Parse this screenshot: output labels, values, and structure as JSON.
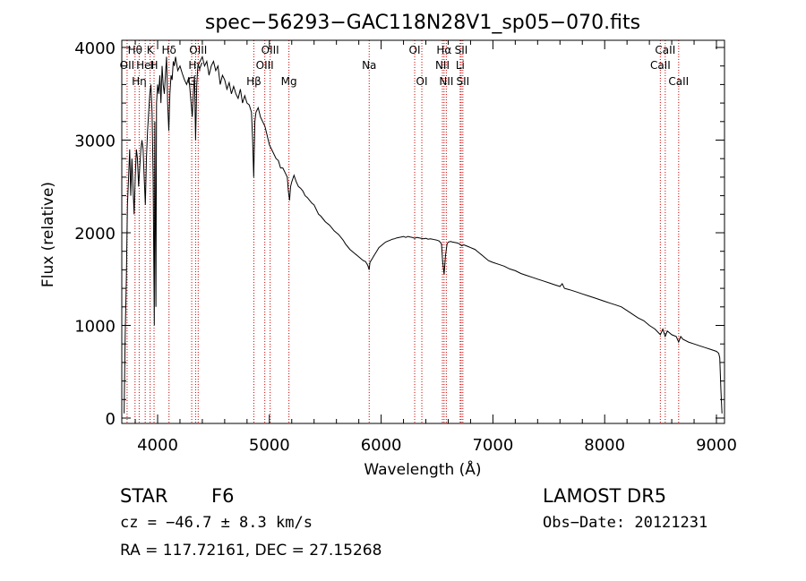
{
  "chart_data": {
    "type": "line",
    "title": "spec−56293−GAC118N28V1_sp05−070.fits",
    "xlabel": "Wavelength (Å)",
    "ylabel": "Flux (relative)",
    "xlim": [
      3700,
      9100
    ],
    "ylim": [
      0,
      4100
    ],
    "xticks": [
      4000,
      5000,
      6000,
      7000,
      8000,
      9000
    ],
    "yticks": [
      0,
      1000,
      2000,
      3000,
      4000
    ],
    "grid": false,
    "series": [
      {
        "points": [
          [
            3700,
            50
          ],
          [
            3710,
            900
          ],
          [
            3720,
            1500
          ],
          [
            3730,
            2300
          ],
          [
            3740,
            2600
          ],
          [
            3750,
            2900
          ],
          [
            3760,
            2400
          ],
          [
            3770,
            2800
          ],
          [
            3780,
            2500
          ],
          [
            3790,
            2200
          ],
          [
            3800,
            2600
          ],
          [
            3810,
            2900
          ],
          [
            3820,
            2800
          ],
          [
            3830,
            2500
          ],
          [
            3840,
            2700
          ],
          [
            3850,
            2900
          ],
          [
            3860,
            3000
          ],
          [
            3870,
            2900
          ],
          [
            3880,
            2600
          ],
          [
            3890,
            2300
          ],
          [
            3900,
            2800
          ],
          [
            3910,
            3100
          ],
          [
            3920,
            3300
          ],
          [
            3930,
            3500
          ],
          [
            3940,
            3600
          ],
          [
            3950,
            3300
          ],
          [
            3960,
            2600
          ],
          [
            3970,
            1000
          ],
          [
            3975,
            3200
          ],
          [
            3985,
            1200
          ],
          [
            3990,
            3400
          ],
          [
            4000,
            3600
          ],
          [
            4010,
            3500
          ],
          [
            4020,
            3700
          ],
          [
            4030,
            3400
          ],
          [
            4040,
            3800
          ],
          [
            4050,
            3600
          ],
          [
            4060,
            3500
          ],
          [
            4070,
            3700
          ],
          [
            4080,
            3900
          ],
          [
            4090,
            3400
          ],
          [
            4100,
            3100
          ],
          [
            4110,
            3500
          ],
          [
            4120,
            3700
          ],
          [
            4130,
            3650
          ],
          [
            4140,
            3850
          ],
          [
            4150,
            3800
          ],
          [
            4160,
            3900
          ],
          [
            4180,
            3750
          ],
          [
            4200,
            3800
          ],
          [
            4220,
            3720
          ],
          [
            4240,
            3650
          ],
          [
            4260,
            3600
          ],
          [
            4280,
            3680
          ],
          [
            4300,
            3400
          ],
          [
            4310,
            3250
          ],
          [
            4320,
            3500
          ],
          [
            4330,
            3700
          ],
          [
            4340,
            3000
          ],
          [
            4350,
            3600
          ],
          [
            4360,
            3800
          ],
          [
            4380,
            3850
          ],
          [
            4400,
            3900
          ],
          [
            4420,
            3800
          ],
          [
            4440,
            3850
          ],
          [
            4460,
            3700
          ],
          [
            4480,
            3800
          ],
          [
            4500,
            3850
          ],
          [
            4520,
            3750
          ],
          [
            4540,
            3800
          ],
          [
            4560,
            3600
          ],
          [
            4580,
            3700
          ],
          [
            4600,
            3650
          ],
          [
            4620,
            3550
          ],
          [
            4640,
            3620
          ],
          [
            4660,
            3500
          ],
          [
            4680,
            3580
          ],
          [
            4700,
            3500
          ],
          [
            4720,
            3450
          ],
          [
            4740,
            3550
          ],
          [
            4760,
            3400
          ],
          [
            4780,
            3480
          ],
          [
            4800,
            3400
          ],
          [
            4820,
            3380
          ],
          [
            4840,
            3300
          ],
          [
            4850,
            3000
          ],
          [
            4860,
            2600
          ],
          [
            4870,
            3200
          ],
          [
            4880,
            3300
          ],
          [
            4900,
            3350
          ],
          [
            4920,
            3250
          ],
          [
            4940,
            3200
          ],
          [
            4960,
            3150
          ],
          [
            4980,
            3050
          ],
          [
            5000,
            2950
          ],
          [
            5020,
            2900
          ],
          [
            5040,
            2850
          ],
          [
            5060,
            2800
          ],
          [
            5080,
            2780
          ],
          [
            5100,
            2700
          ],
          [
            5120,
            2700
          ],
          [
            5140,
            2650
          ],
          [
            5160,
            2600
          ],
          [
            5170,
            2450
          ],
          [
            5180,
            2350
          ],
          [
            5190,
            2500
          ],
          [
            5200,
            2550
          ],
          [
            5220,
            2620
          ],
          [
            5240,
            2550
          ],
          [
            5260,
            2500
          ],
          [
            5280,
            2480
          ],
          [
            5300,
            2450
          ],
          [
            5320,
            2400
          ],
          [
            5340,
            2380
          ],
          [
            5360,
            2350
          ],
          [
            5380,
            2320
          ],
          [
            5400,
            2300
          ],
          [
            5420,
            2250
          ],
          [
            5440,
            2200
          ],
          [
            5460,
            2180
          ],
          [
            5480,
            2150
          ],
          [
            5500,
            2120
          ],
          [
            5520,
            2100
          ],
          [
            5540,
            2080
          ],
          [
            5560,
            2050
          ],
          [
            5580,
            2020
          ],
          [
            5600,
            2000
          ],
          [
            5620,
            1980
          ],
          [
            5640,
            1950
          ],
          [
            5660,
            1920
          ],
          [
            5680,
            1880
          ],
          [
            5700,
            1850
          ],
          [
            5720,
            1820
          ],
          [
            5740,
            1800
          ],
          [
            5760,
            1780
          ],
          [
            5780,
            1760
          ],
          [
            5800,
            1740
          ],
          [
            5820,
            1720
          ],
          [
            5840,
            1700
          ],
          [
            5860,
            1690
          ],
          [
            5880,
            1650
          ],
          [
            5893,
            1600
          ],
          [
            5900,
            1680
          ],
          [
            5920,
            1720
          ],
          [
            5940,
            1760
          ],
          [
            5960,
            1800
          ],
          [
            5980,
            1840
          ],
          [
            6000,
            1860
          ],
          [
            6020,
            1880
          ],
          [
            6040,
            1900
          ],
          [
            6060,
            1910
          ],
          [
            6080,
            1920
          ],
          [
            6100,
            1930
          ],
          [
            6120,
            1935
          ],
          [
            6140,
            1945
          ],
          [
            6160,
            1950
          ],
          [
            6180,
            1955
          ],
          [
            6200,
            1960
          ],
          [
            6220,
            1950
          ],
          [
            6240,
            1960
          ],
          [
            6260,
            1955
          ],
          [
            6280,
            1950
          ],
          [
            6300,
            1940
          ],
          [
            6320,
            1950
          ],
          [
            6340,
            1945
          ],
          [
            6360,
            1940
          ],
          [
            6380,
            1935
          ],
          [
            6400,
            1940
          ],
          [
            6420,
            1930
          ],
          [
            6440,
            1935
          ],
          [
            6460,
            1930
          ],
          [
            6480,
            1925
          ],
          [
            6500,
            1920
          ],
          [
            6520,
            1910
          ],
          [
            6540,
            1880
          ],
          [
            6550,
            1700
          ],
          [
            6563,
            1550
          ],
          [
            6575,
            1750
          ],
          [
            6590,
            1880
          ],
          [
            6600,
            1900
          ],
          [
            6620,
            1905
          ],
          [
            6640,
            1900
          ],
          [
            6660,
            1895
          ],
          [
            6680,
            1890
          ],
          [
            6700,
            1880
          ],
          [
            6720,
            1860
          ],
          [
            6740,
            1870
          ],
          [
            6760,
            1860
          ],
          [
            6780,
            1850
          ],
          [
            6800,
            1840
          ],
          [
            6820,
            1830
          ],
          [
            6840,
            1820
          ],
          [
            6860,
            1800
          ],
          [
            6880,
            1780
          ],
          [
            6900,
            1760
          ],
          [
            6920,
            1740
          ],
          [
            6940,
            1720
          ],
          [
            6960,
            1700
          ],
          [
            6980,
            1690
          ],
          [
            7000,
            1680
          ],
          [
            7050,
            1660
          ],
          [
            7100,
            1640
          ],
          [
            7150,
            1610
          ],
          [
            7200,
            1590
          ],
          [
            7250,
            1560
          ],
          [
            7300,
            1540
          ],
          [
            7350,
            1520
          ],
          [
            7400,
            1500
          ],
          [
            7450,
            1480
          ],
          [
            7500,
            1460
          ],
          [
            7550,
            1440
          ],
          [
            7600,
            1420
          ],
          [
            7620,
            1450
          ],
          [
            7640,
            1400
          ],
          [
            7700,
            1380
          ],
          [
            7750,
            1360
          ],
          [
            7800,
            1340
          ],
          [
            7850,
            1320
          ],
          [
            7900,
            1300
          ],
          [
            7950,
            1280
          ],
          [
            8000,
            1260
          ],
          [
            8050,
            1240
          ],
          [
            8100,
            1220
          ],
          [
            8150,
            1200
          ],
          [
            8200,
            1160
          ],
          [
            8250,
            1120
          ],
          [
            8300,
            1080
          ],
          [
            8350,
            1050
          ],
          [
            8400,
            1000
          ],
          [
            8450,
            960
          ],
          [
            8498,
            900
          ],
          [
            8520,
            960
          ],
          [
            8542,
            880
          ],
          [
            8560,
            940
          ],
          [
            8600,
            900
          ],
          [
            8640,
            880
          ],
          [
            8662,
            820
          ],
          [
            8680,
            880
          ],
          [
            8700,
            850
          ],
          [
            8750,
            820
          ],
          [
            8800,
            800
          ],
          [
            8850,
            780
          ],
          [
            8900,
            760
          ],
          [
            8950,
            740
          ],
          [
            9000,
            720
          ],
          [
            9020,
            700
          ],
          [
            9030,
            650
          ],
          [
            9040,
            300
          ],
          [
            9050,
            50
          ]
        ]
      }
    ],
    "lines": [
      {
        "x": 3727,
        "label": "OII",
        "row": 2
      },
      {
        "x": 3798,
        "label": "Hθ",
        "row": 1
      },
      {
        "x": 3835,
        "label": "Hη",
        "row": 3
      },
      {
        "x": 3889,
        "label": "HeI",
        "row": 2
      },
      {
        "x": 3933,
        "label": "K",
        "row": 1
      },
      {
        "x": 3968,
        "label": "H",
        "row": 2
      },
      {
        "x": 4102,
        "label": "Hδ",
        "row": 1
      },
      {
        "x": 4305,
        "label": "G",
        "row": 3
      },
      {
        "x": 4340,
        "label": "Hγ",
        "row": 2
      },
      {
        "x": 4363,
        "label": "OIII",
        "row": 1
      },
      {
        "x": 4861,
        "label": "Hβ",
        "row": 3
      },
      {
        "x": 4959,
        "label": "OIII",
        "row": 2
      },
      {
        "x": 5007,
        "label": "OIII",
        "row": 1
      },
      {
        "x": 5175,
        "label": "Mg",
        "row": 3
      },
      {
        "x": 5893,
        "label": "Na",
        "row": 2
      },
      {
        "x": 6300,
        "label": "OI",
        "row": 1
      },
      {
        "x": 6364,
        "label": "OI",
        "row": 3
      },
      {
        "x": 6548,
        "label": "NII",
        "row": 2
      },
      {
        "x": 6563,
        "label": "Hα",
        "row": 1
      },
      {
        "x": 6583,
        "label": "NII",
        "row": 3
      },
      {
        "x": 6707,
        "label": "Li",
        "row": 2
      },
      {
        "x": 6716,
        "label": "SII",
        "row": 1
      },
      {
        "x": 6731,
        "label": "SII",
        "row": 3
      },
      {
        "x": 8498,
        "label": "CaII",
        "row": 2
      },
      {
        "x": 8542,
        "label": "CaII",
        "row": 1
      },
      {
        "x": 8662,
        "label": "CaII",
        "row": 3
      }
    ]
  },
  "info": {
    "class_label": "STAR",
    "subclass": "F6",
    "cz": "cz = −46.7 ± 8.3 km/s",
    "radec": "RA = 117.72161, DEC =  27.15268",
    "survey": "LAMOST DR5",
    "obs_date": "Obs−Date: 20121231"
  },
  "colors": {
    "spectrum": "#000000",
    "line_markers": "#cc0000",
    "axes": "#000000",
    "background": "#ffffff"
  }
}
